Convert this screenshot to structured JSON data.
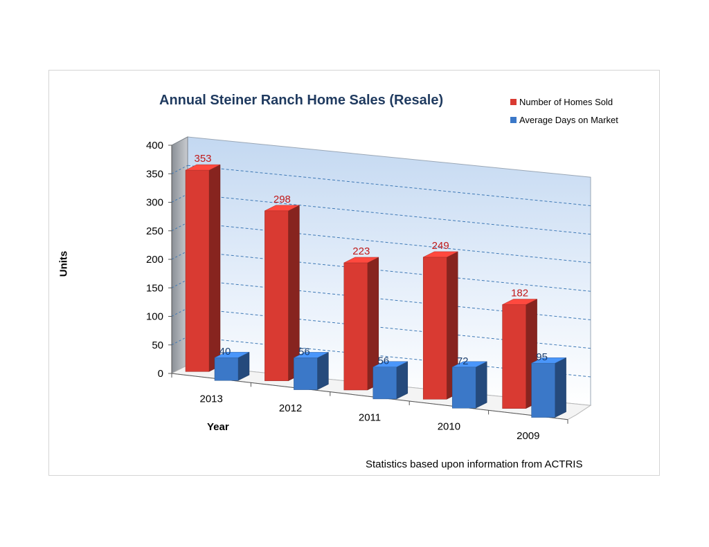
{
  "chart_data": {
    "type": "bar",
    "title": "Annual Steiner Ranch Home Sales (Resale)",
    "xlabel": "Year",
    "ylabel": "Units",
    "categories": [
      "2013",
      "2012",
      "2011",
      "2010",
      "2009"
    ],
    "series": [
      {
        "name": "Number of Homes Sold",
        "values": [
          353,
          298,
          223,
          249,
          182
        ],
        "color": "#d93a32"
      },
      {
        "name": "Average Days on Market",
        "values": [
          40,
          56,
          56,
          72,
          95
        ],
        "color": "#3b78c8"
      }
    ],
    "ylim": [
      0,
      400
    ],
    "yticks": [
      0,
      50,
      100,
      150,
      200,
      250,
      300,
      350,
      400
    ],
    "grid": true,
    "style": "3d",
    "legend_position": "top-right",
    "data_labels": true,
    "note": "Statistics based upon information from ACTRIS"
  }
}
